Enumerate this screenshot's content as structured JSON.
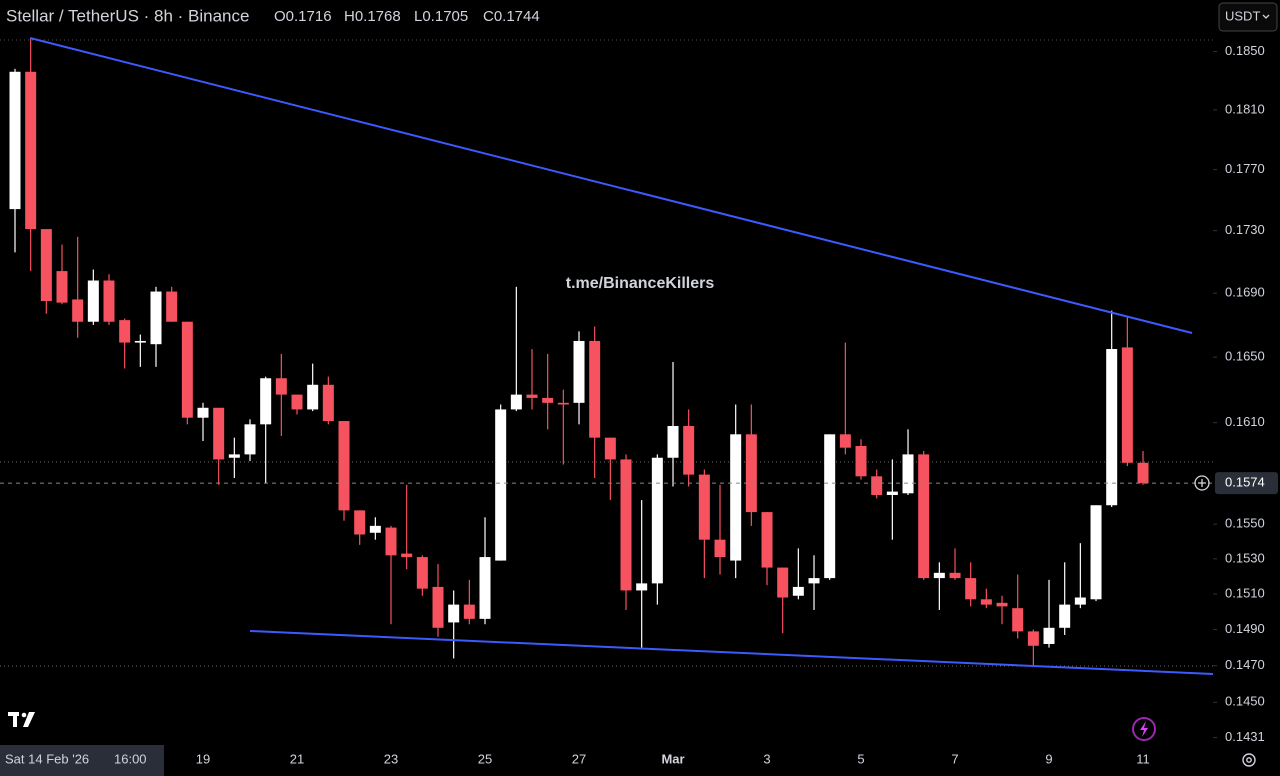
{
  "chart_data": {
    "type": "candlestick",
    "title": "Stellar / TetherUS · 8h · Binance",
    "legend_text": [
      "O0.1716",
      "H0.1768",
      "L0.1705",
      "C0.1744"
    ],
    "watermark": "t.me/BinanceKillers",
    "currency_button": "USDT",
    "crosshair_date": "Sat 14 Feb '26",
    "crosshair_time": "16:00",
    "log_scale": true,
    "grid": false,
    "up_color": "#ffffff",
    "down_color": "#f7525f",
    "categories": [
      null,
      null,
      null,
      null,
      null,
      null,
      null,
      null,
      null,
      null,
      null,
      null,
      "19",
      null,
      null,
      null,
      null,
      null,
      "21",
      null,
      null,
      null,
      null,
      null,
      "23",
      null,
      null,
      null,
      null,
      null,
      "25",
      null,
      null,
      null,
      null,
      null,
      "27",
      null,
      null,
      null,
      null,
      null,
      "Mar",
      null,
      null,
      null,
      null,
      null,
      "3",
      null,
      null,
      null,
      null,
      null,
      "5",
      null,
      null,
      null,
      null,
      null,
      "7",
      null,
      null,
      null,
      null,
      null,
      "9",
      null,
      null,
      null,
      null,
      null,
      "11"
    ],
    "open": [
      0.1744,
      0.1836,
      0.1731,
      0.1704,
      0.1686,
      0.1672,
      0.1698,
      0.1673,
      0.1659,
      0.1658,
      0.1691,
      0.1672,
      0.1613,
      0.1619,
      0.1589,
      0.1591,
      0.1609,
      0.1637,
      0.1627,
      0.1618,
      0.1633,
      0.1611,
      0.1558,
      0.1545,
      0.1548,
      0.1533,
      0.1531,
      0.1514,
      0.1494,
      0.1504,
      0.1496,
      0.1529,
      0.1618,
      0.1627,
      0.1625,
      0.1622,
      0.1622,
      0.166,
      0.1601,
      0.1588,
      0.1512,
      0.1516,
      0.1589,
      0.1608,
      0.1579,
      0.1541,
      0.1529,
      0.1603,
      0.1557,
      0.1525,
      0.1509,
      0.1516,
      0.1519,
      0.1603,
      0.1596,
      0.1578,
      0.1567,
      0.1568,
      0.1591,
      0.1519,
      0.1522,
      0.1519,
      0.1507,
      0.1505,
      0.1502,
      0.1489,
      0.1482,
      0.1491,
      0.1504,
      0.1507,
      0.1561,
      0.1656,
      0.1586
    ],
    "high": [
      0.1838,
      0.1859,
      0.1731,
      0.1721,
      0.1726,
      0.1705,
      0.1702,
      0.1674,
      0.1664,
      0.1694,
      0.1694,
      0.1672,
      0.1622,
      0.1619,
      0.1601,
      0.1612,
      0.1638,
      0.1652,
      0.1627,
      0.1646,
      0.1638,
      0.1611,
      0.1558,
      0.1554,
      0.1549,
      0.1573,
      0.1532,
      0.1527,
      0.1512,
      0.1518,
      0.1554,
      0.1621,
      0.1694,
      0.1655,
      0.1652,
      0.163,
      0.1666,
      0.1669,
      0.1601,
      0.1591,
      0.1564,
      0.1591,
      0.1647,
      0.1618,
      0.1582,
      0.1573,
      0.1621,
      0.1621,
      0.1557,
      0.1525,
      0.1536,
      0.1532,
      0.1603,
      0.1659,
      0.16,
      0.1582,
      0.1588,
      0.1606,
      0.1593,
      0.1528,
      0.1536,
      0.1528,
      0.1513,
      0.1509,
      0.1521,
      0.149,
      0.1518,
      0.1528,
      0.1539,
      0.1561,
      0.1679,
      0.1675,
      0.1593
    ],
    "low": [
      0.1716,
      0.1704,
      0.1677,
      0.1683,
      0.1662,
      0.167,
      0.167,
      0.1643,
      0.1644,
      0.1644,
      0.1672,
      0.1609,
      0.1599,
      0.1573,
      0.1577,
      0.1587,
      0.1574,
      0.1602,
      0.1615,
      0.1617,
      0.1609,
      0.1552,
      0.1538,
      0.1541,
      0.1493,
      0.1524,
      0.1509,
      0.1486,
      0.1474,
      0.1493,
      0.1493,
      0.1529,
      0.1617,
      0.1618,
      0.1606,
      0.1585,
      0.1609,
      0.1577,
      0.1564,
      0.1501,
      0.148,
      0.1504,
      0.1572,
      0.1572,
      0.1519,
      0.1521,
      0.1519,
      0.1549,
      0.1515,
      0.1488,
      0.1507,
      0.1501,
      0.1518,
      0.1591,
      0.1576,
      0.1565,
      0.1541,
      0.1567,
      0.1518,
      0.1501,
      0.1518,
      0.1503,
      0.1502,
      0.1493,
      0.1485,
      0.147,
      0.148,
      0.1487,
      0.1502,
      0.1506,
      0.156,
      0.1584,
      0.1573
    ],
    "close": [
      0.1836,
      0.1731,
      0.1685,
      0.1684,
      0.1672,
      0.1698,
      0.1672,
      0.1659,
      0.166,
      0.1691,
      0.1672,
      0.1613,
      0.1619,
      0.1588,
      0.1591,
      0.1609,
      0.1637,
      0.1627,
      0.1618,
      0.1633,
      0.1611,
      0.1558,
      0.1544,
      0.1549,
      0.1532,
      0.1531,
      0.1513,
      0.1491,
      0.1504,
      0.1496,
      0.1531,
      0.1618,
      0.1627,
      0.1625,
      0.1622,
      0.1621,
      0.166,
      0.1601,
      0.1588,
      0.1512,
      0.1516,
      0.1589,
      0.1608,
      0.1579,
      0.1541,
      0.1531,
      0.1603,
      0.1557,
      0.1525,
      0.1508,
      0.1514,
      0.1519,
      0.1603,
      0.1595,
      0.1578,
      0.1567,
      0.1569,
      0.1591,
      0.1519,
      0.1522,
      0.1519,
      0.1507,
      0.1504,
      0.1503,
      0.1489,
      0.1481,
      0.1491,
      0.1504,
      0.1508,
      0.1561,
      0.1655,
      0.1586,
      0.1574
    ],
    "ylim": [
      0.1427,
      0.1886
    ],
    "yticks": [
      {
        "value": 0.185,
        "label": "0.1850"
      },
      {
        "value": 0.181,
        "label": "0.1810"
      },
      {
        "value": 0.177,
        "label": "0.1770"
      },
      {
        "value": 0.173,
        "label": "0.1730"
      },
      {
        "value": 0.169,
        "label": "0.1690"
      },
      {
        "value": 0.165,
        "label": "0.1650"
      },
      {
        "value": 0.161,
        "label": "0.1610"
      },
      {
        "value": 0.155,
        "label": "0.1550"
      },
      {
        "value": 0.153,
        "label": "0.1530"
      },
      {
        "value": 0.151,
        "label": "0.1510"
      },
      {
        "value": 0.149,
        "label": "0.1490"
      },
      {
        "value": 0.147,
        "label": "0.1470"
      },
      {
        "value": 0.145,
        "label": "0.1450"
      },
      0.1431
    ]
  }
}
